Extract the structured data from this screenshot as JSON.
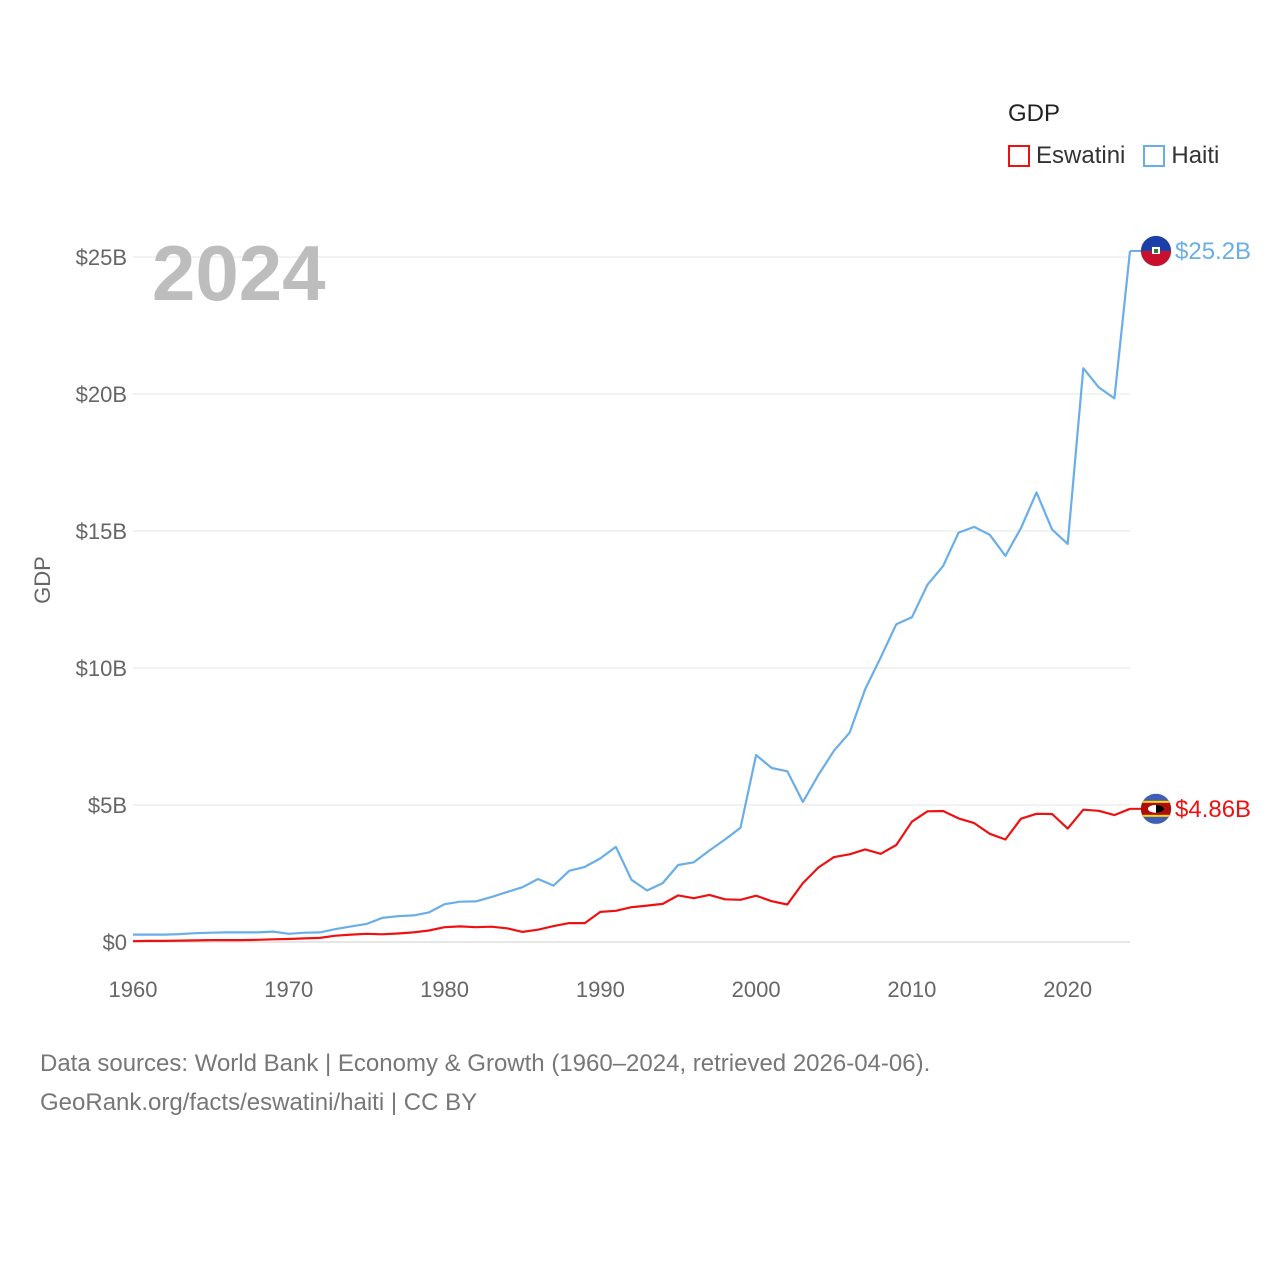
{
  "chart_data": {
    "type": "line",
    "ylabel": "GDP",
    "legend_title": "GDP",
    "legend_position": "top-right",
    "current_year": "2024",
    "x_ticks": [
      "1960",
      "1970",
      "1980",
      "1990",
      "2000",
      "2010",
      "2020"
    ],
    "y_ticks": [
      "$0",
      "$5B",
      "$10B",
      "$15B",
      "$20B",
      "$25B"
    ],
    "ylim": [
      0,
      25
    ],
    "xlim": [
      1960,
      2024
    ],
    "grid": true,
    "series": [
      {
        "name": "Eswatini",
        "color": "#ee1111",
        "end_label": "$4.86B",
        "x": [
          1960,
          1961,
          1962,
          1963,
          1964,
          1965,
          1966,
          1967,
          1968,
          1969,
          1970,
          1971,
          1972,
          1973,
          1974,
          1975,
          1976,
          1977,
          1978,
          1979,
          1980,
          1981,
          1982,
          1983,
          1984,
          1985,
          1986,
          1987,
          1988,
          1989,
          1990,
          1991,
          1992,
          1993,
          1994,
          1995,
          1996,
          1997,
          1998,
          1999,
          2000,
          2001,
          2002,
          2003,
          2004,
          2005,
          2006,
          2007,
          2008,
          2009,
          2010,
          2011,
          2012,
          2013,
          2014,
          2015,
          2016,
          2017,
          2018,
          2019,
          2020,
          2021,
          2022,
          2023,
          2024
        ],
        "values": [
          0.03,
          0.04,
          0.04,
          0.05,
          0.06,
          0.07,
          0.07,
          0.07,
          0.08,
          0.1,
          0.11,
          0.13,
          0.15,
          0.23,
          0.27,
          0.3,
          0.28,
          0.31,
          0.35,
          0.42,
          0.54,
          0.57,
          0.54,
          0.56,
          0.5,
          0.37,
          0.45,
          0.58,
          0.69,
          0.69,
          1.1,
          1.14,
          1.27,
          1.33,
          1.39,
          1.7,
          1.6,
          1.72,
          1.56,
          1.54,
          1.69,
          1.49,
          1.37,
          2.15,
          2.72,
          3.1,
          3.2,
          3.38,
          3.22,
          3.54,
          4.39,
          4.77,
          4.78,
          4.51,
          4.34,
          3.95,
          3.74,
          4.5,
          4.68,
          4.67,
          4.14,
          4.83,
          4.79,
          4.63,
          4.86
        ]
      },
      {
        "name": "Haiti",
        "color": "#6aaee8",
        "end_label": "$25.2B",
        "x": [
          1960,
          1961,
          1962,
          1963,
          1964,
          1965,
          1966,
          1967,
          1968,
          1969,
          1970,
          1971,
          1972,
          1973,
          1974,
          1975,
          1976,
          1977,
          1978,
          1979,
          1980,
          1981,
          1982,
          1983,
          1984,
          1985,
          1986,
          1987,
          1988,
          1989,
          1990,
          1991,
          1992,
          1993,
          1994,
          1995,
          1996,
          1997,
          1998,
          1999,
          2000,
          2001,
          2002,
          2003,
          2004,
          2005,
          2006,
          2007,
          2008,
          2009,
          2010,
          2011,
          2012,
          2013,
          2014,
          2015,
          2016,
          2017,
          2018,
          2019,
          2020,
          2021,
          2022,
          2023,
          2024
        ],
        "values": [
          0.27,
          0.27,
          0.27,
          0.29,
          0.32,
          0.34,
          0.35,
          0.35,
          0.35,
          0.38,
          0.3,
          0.34,
          0.35,
          0.47,
          0.57,
          0.66,
          0.88,
          0.94,
          0.97,
          1.08,
          1.38,
          1.47,
          1.48,
          1.64,
          1.82,
          2.0,
          2.3,
          2.06,
          2.6,
          2.74,
          3.05,
          3.47,
          2.27,
          1.88,
          2.15,
          2.81,
          2.91,
          3.34,
          3.74,
          4.17,
          6.82,
          6.35,
          6.23,
          5.11,
          6.1,
          6.98,
          7.64,
          9.23,
          10.39,
          11.6,
          11.85,
          13.04,
          13.72,
          14.94,
          15.15,
          14.86,
          14.09,
          15.11,
          16.41,
          15.05,
          14.53,
          20.94,
          20.24,
          19.84,
          25.22
        ]
      }
    ]
  },
  "footer": {
    "line1": "Data sources: World Bank | Economy & Growth (1960–2024, retrieved 2026-04-06).",
    "line2": "GeoRank.org/facts/eswatini/haiti | CC BY"
  }
}
